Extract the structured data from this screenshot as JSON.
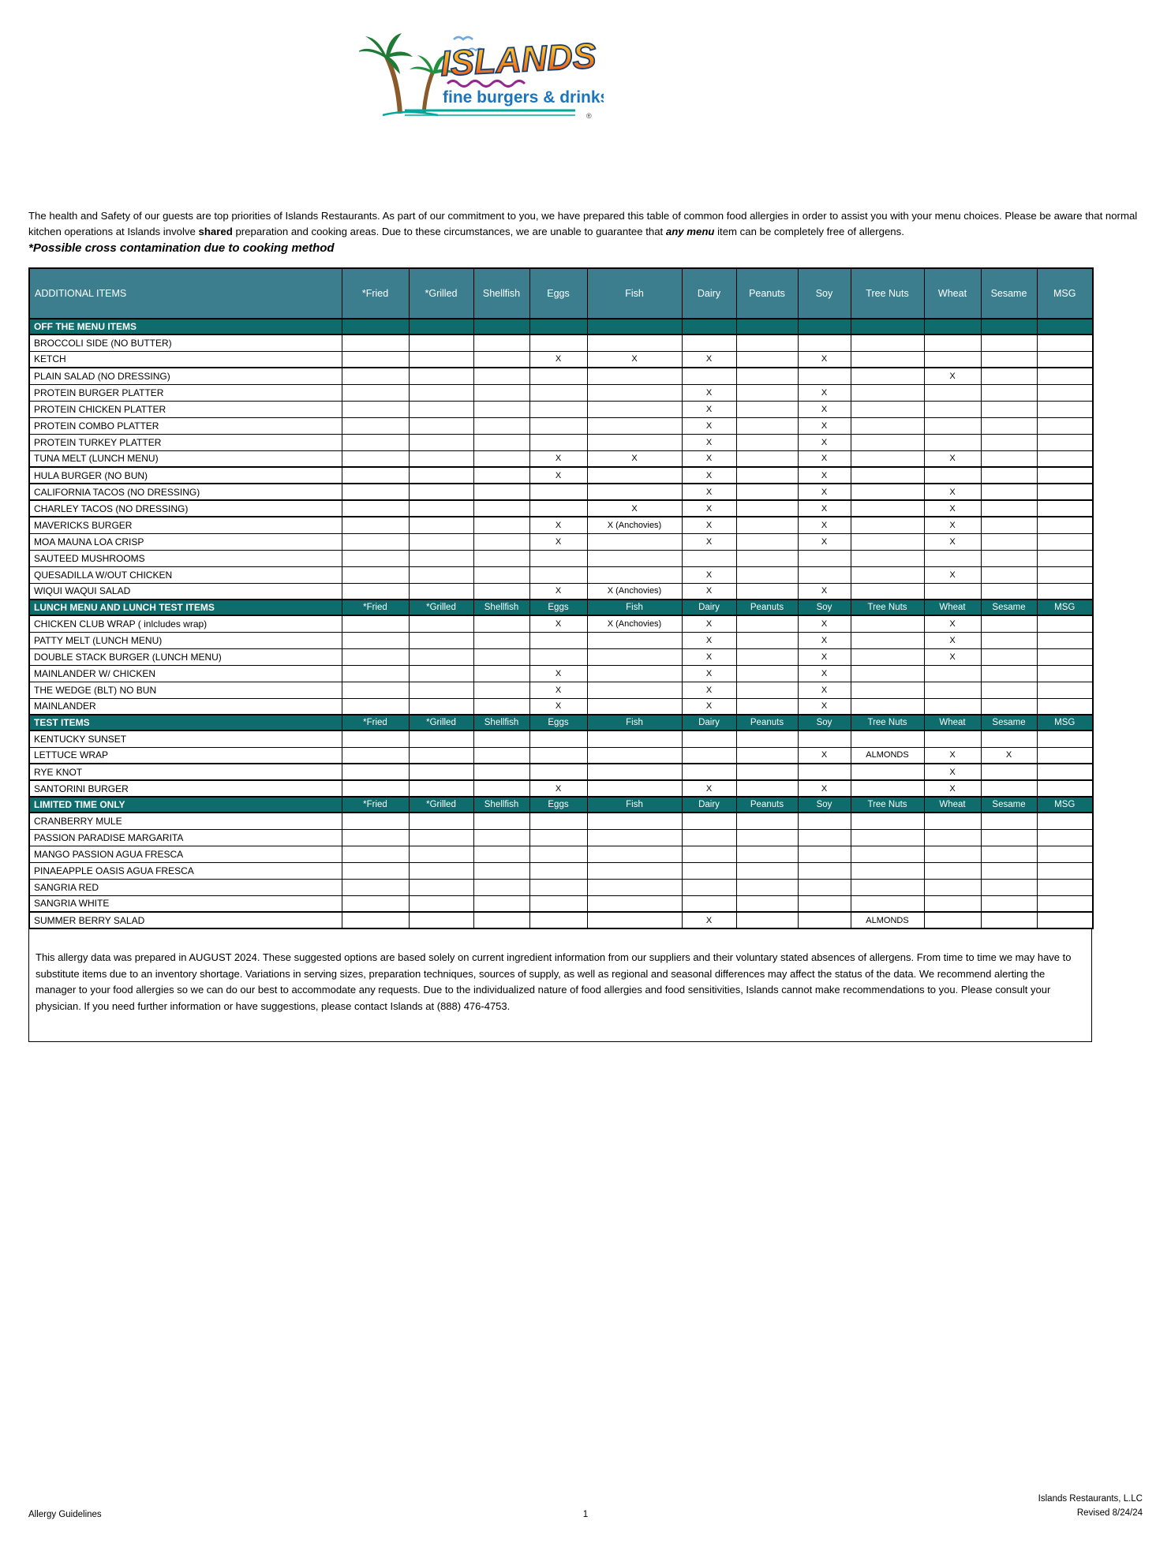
{
  "logo": {
    "name": "ISLANDS",
    "tagline": "fine burgers & drinks",
    "registered": "®"
  },
  "intro": {
    "part1": "The health and Safety of our guests are top priorities of Islands Restaurants. As part of our commitment to you, we have prepared this table of common food allergies in order to assist you with your menu choices. Please be aware that normal kitchen operations at Islands involve ",
    "part2_bold": "shared",
    "part3": " preparation and cooking areas. Due to these circumstances, we are unable to guarantee that ",
    "part4_bold_italic": "any menu",
    "part5": " item can be completely free of allergens."
  },
  "cross_note": "*Possible cross contamination due to cooking method",
  "colors": {
    "header_bg": "#3D7E8E",
    "section_bg": "#0E6C6C",
    "header_text": "#FFFFFF",
    "border": "#000000"
  },
  "table": {
    "columns": [
      "ADDITIONAL ITEMS",
      "*Fried",
      "*Grilled",
      "Shellfish",
      "Eggs",
      "Fish",
      "Dairy",
      "Peanuts",
      "Soy",
      "Tree Nuts",
      "Wheat",
      "Sesame",
      "MSG"
    ],
    "sections": [
      {
        "header": "OFF THE MENU ITEMS",
        "repeat_columns": false,
        "rows": [
          {
            "name": "BROCCOLI SIDE (NO BUTTER)",
            "cells": [
              "",
              "",
              "",
              "",
              "",
              "",
              "",
              "",
              "",
              "",
              "",
              ""
            ]
          },
          {
            "name": "KETCH",
            "thick_bottom": true,
            "cells": [
              "",
              "",
              "",
              "X",
              "X",
              "X",
              "",
              "X",
              "",
              "",
              "",
              ""
            ]
          },
          {
            "name": "PLAIN SALAD (NO DRESSING)",
            "cells": [
              "",
              "",
              "",
              "",
              "",
              "",
              "",
              "",
              "",
              "X",
              "",
              ""
            ]
          },
          {
            "name": "PROTEIN BURGER PLATTER",
            "cells": [
              "",
              "",
              "",
              "",
              "",
              "X",
              "",
              "X",
              "",
              "",
              "",
              ""
            ]
          },
          {
            "name": "PROTEIN CHICKEN PLATTER",
            "cells": [
              "",
              "",
              "",
              "",
              "",
              "X",
              "",
              "X",
              "",
              "",
              "",
              ""
            ]
          },
          {
            "name": "PROTEIN COMBO PLATTER",
            "cells": [
              "",
              "",
              "",
              "",
              "",
              "X",
              "",
              "X",
              "",
              "",
              "",
              ""
            ]
          },
          {
            "name": "PROTEIN TURKEY PLATTER",
            "cells": [
              "",
              "",
              "",
              "",
              "",
              "X",
              "",
              "X",
              "",
              "",
              "",
              ""
            ]
          },
          {
            "name": "TUNA MELT (LUNCH MENU)",
            "thick_bottom": true,
            "cells": [
              "",
              "",
              "",
              "X",
              "X",
              "X",
              "",
              "X",
              "",
              "X",
              "",
              ""
            ]
          },
          {
            "name": "HULA BURGER (NO BUN)",
            "thick_bottom": true,
            "cells": [
              "",
              "",
              "",
              "X",
              "",
              "X",
              "",
              "X",
              "",
              "",
              "",
              ""
            ]
          },
          {
            "name": "CALIFORNIA TACOS (NO DRESSING)",
            "thick_bottom": true,
            "cells": [
              "",
              "",
              "",
              "",
              "",
              "X",
              "",
              "X",
              "",
              "X",
              "",
              ""
            ]
          },
          {
            "name": "CHARLEY TACOS (NO DRESSING)",
            "thick_bottom": true,
            "cells": [
              "",
              "",
              "",
              "",
              "X",
              "X",
              "",
              "X",
              "",
              "X",
              "",
              ""
            ]
          },
          {
            "name": "MAVERICKS BURGER",
            "cells": [
              "",
              "",
              "",
              "X",
              "X (Anchovies)",
              "X",
              "",
              "X",
              "",
              "X",
              "",
              ""
            ]
          },
          {
            "name": "MOA MAUNA LOA CRISP",
            "cells": [
              "",
              "",
              "",
              "X",
              "",
              "X",
              "",
              "X",
              "",
              "X",
              "",
              ""
            ]
          },
          {
            "name": "SAUTEED MUSHROOMS",
            "cells": [
              "",
              "",
              "",
              "",
              "",
              "",
              "",
              "",
              "",
              "",
              "",
              ""
            ]
          },
          {
            "name": " QUESADILLA W/OUT CHICKEN",
            "cells": [
              "",
              "",
              "",
              "",
              "",
              "X",
              "",
              "",
              "",
              "X",
              "",
              ""
            ]
          },
          {
            "name": "WIQUI WAQUI SALAD",
            "cells": [
              "",
              "",
              "",
              "X",
              "X (Anchovies)",
              "X",
              "",
              "X",
              "",
              "",
              "",
              ""
            ]
          }
        ]
      },
      {
        "header": "LUNCH MENU AND LUNCH TEST ITEMS",
        "repeat_columns": true,
        "rows": [
          {
            "name": "CHICKEN CLUB WRAP ( inlcludes wrap)",
            "cells": [
              "",
              "",
              "",
              "X",
              "X (Anchovies)",
              "X",
              "",
              "X",
              "",
              "X",
              "",
              ""
            ]
          },
          {
            "name": "PATTY MELT (LUNCH MENU)",
            "cells": [
              "",
              "",
              "",
              "",
              "",
              "X",
              "",
              "X",
              "",
              "X",
              "",
              ""
            ]
          },
          {
            "name": "DOUBLE STACK BURGER (LUNCH MENU)",
            "cells": [
              "",
              "",
              "",
              "",
              "",
              "X",
              "",
              "X",
              "",
              "X",
              "",
              ""
            ]
          },
          {
            "name": "MAINLANDER W/ CHICKEN",
            "cells": [
              "",
              "",
              "",
              "X",
              "",
              "X",
              "",
              "X",
              "",
              "",
              "",
              ""
            ]
          },
          {
            "name": "THE WEDGE (BLT) NO BUN",
            "cells": [
              "",
              "",
              "",
              "X",
              "",
              "X",
              "",
              "X",
              "",
              "",
              "",
              ""
            ]
          },
          {
            "name": "MAINLANDER",
            "cells": [
              "",
              "",
              "",
              "X",
              "",
              "X",
              "",
              "X",
              "",
              "",
              "",
              ""
            ]
          }
        ]
      },
      {
        "header": "TEST ITEMS",
        "repeat_columns": true,
        "rows": [
          {
            "name": "KENTUCKY SUNSET",
            "cells": [
              "",
              "",
              "",
              "",
              "",
              "",
              "",
              "",
              "",
              "",
              "",
              ""
            ]
          },
          {
            "name": "LETTUCE WRAP",
            "thick_bottom": true,
            "cells": [
              "",
              "",
              "",
              "",
              "",
              "",
              "",
              "X",
              "ALMONDS",
              "X",
              "X",
              ""
            ]
          },
          {
            "name": "RYE KNOT",
            "thick_bottom": true,
            "cells": [
              "",
              "",
              "",
              "",
              "",
              "",
              "",
              "",
              "",
              "X",
              "",
              ""
            ]
          },
          {
            "name": "SANTORINI BURGER",
            "cells": [
              "",
              "",
              "",
              "X",
              "",
              "X",
              "",
              "X",
              "",
              "X",
              "",
              ""
            ]
          }
        ]
      },
      {
        "header": "LIMITED TIME ONLY",
        "repeat_columns": true,
        "rows": [
          {
            "name": "CRANBERRY MULE",
            "cells": [
              "",
              "",
              "",
              "",
              "",
              "",
              "",
              "",
              "",
              "",
              "",
              ""
            ]
          },
          {
            "name": "PASSION PARADISE MARGARITA",
            "cells": [
              "",
              "",
              "",
              "",
              "",
              "",
              "",
              "",
              "",
              "",
              "",
              ""
            ]
          },
          {
            "name": "MANGO PASSION AGUA FRESCA",
            "cells": [
              "",
              "",
              "",
              "",
              "",
              "",
              "",
              "",
              "",
              "",
              "",
              ""
            ]
          },
          {
            "name": "PINAEAPPLE OASIS AGUA FRESCA",
            "cells": [
              "",
              "",
              "",
              "",
              "",
              "",
              "",
              "",
              "",
              "",
              "",
              ""
            ]
          },
          {
            "name": "SANGRIA RED",
            "cells": [
              "",
              "",
              "",
              "",
              "",
              "",
              "",
              "",
              "",
              "",
              "",
              ""
            ]
          },
          {
            "name": "SANGRIA WHITE",
            "thick_bottom": true,
            "cells": [
              "",
              "",
              "",
              "",
              "",
              "",
              "",
              "",
              "",
              "",
              "",
              ""
            ]
          },
          {
            "name": " SUMMER BERRY SALAD",
            "cells": [
              "",
              "",
              "",
              "",
              "",
              "X",
              "",
              "",
              "ALMONDS",
              "",
              "",
              ""
            ]
          }
        ]
      }
    ]
  },
  "footnote": "This allergy data was prepared in AUGUST 2024. These suggested options are based solely on current ingredient information from our suppliers and their voluntary stated absences of allergens. From time to time we may have to substitute items due to an inventory shortage. Variations in serving sizes, preparation techniques, sources of supply, as well as regional and seasonal differences may affect the status of the data.  We recommend alerting the manager to your food allergies so we can do our best to accommodate any requests. Due to the individualized nature of food allergies and food sensitivities, Islands cannot make recommendations to you. Please consult your physician. If you need further information or have suggestions, please contact Islands at (888) 476-4753.",
  "footer": {
    "left": "Allergy Guidelines",
    "page_number": "1",
    "right_line1": "Islands Restaurants, L.LC",
    "right_line2": "Revised 8/24/24"
  }
}
